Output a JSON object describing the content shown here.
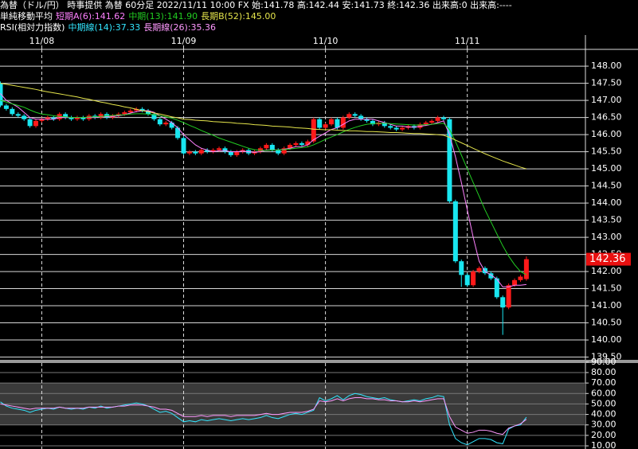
{
  "header": {
    "line1": "為替（ドル/円） 時事提供 為替 60分足 2022/11/11 10:00 FX 始:141.78 高:142.44 安:141.73 終:142.36 出来高:0 出来高:----",
    "ma_title": "単純移動平均",
    "rsi_title": "RSI(相対力指数)"
  },
  "chart_data": [
    {
      "type": "candlestick",
      "categories": [
        null,
        null,
        null,
        null,
        null,
        null,
        null,
        "11/08",
        null,
        null,
        null,
        null,
        null,
        null,
        null,
        null,
        null,
        null,
        null,
        null,
        null,
        null,
        null,
        null,
        null,
        null,
        null,
        null,
        null,
        null,
        null,
        "11/09",
        null,
        null,
        null,
        null,
        null,
        null,
        null,
        null,
        null,
        null,
        null,
        null,
        null,
        null,
        null,
        null,
        null,
        null,
        null,
        null,
        null,
        null,
        null,
        "11/10",
        null,
        null,
        null,
        null,
        null,
        null,
        null,
        null,
        null,
        null,
        null,
        null,
        null,
        null,
        null,
        null,
        null,
        null,
        null,
        null,
        null,
        null,
        null,
        "11/11",
        null,
        null,
        null,
        null,
        null,
        null,
        null,
        null,
        null,
        null
      ],
      "open": [
        147.5,
        146.85,
        146.75,
        146.6,
        146.55,
        146.45,
        146.25,
        146.4,
        146.45,
        146.5,
        146.45,
        146.6,
        146.5,
        146.45,
        146.5,
        146.45,
        146.55,
        146.5,
        146.6,
        146.5,
        146.55,
        146.6,
        146.65,
        146.7,
        146.75,
        146.7,
        146.6,
        146.45,
        146.3,
        146.35,
        146.2,
        145.9,
        145.45,
        145.5,
        145.45,
        145.55,
        145.5,
        145.55,
        145.6,
        145.5,
        145.4,
        145.5,
        145.55,
        145.45,
        145.5,
        145.6,
        145.7,
        145.55,
        145.45,
        145.6,
        145.7,
        145.75,
        145.7,
        145.8,
        146.45,
        146.2,
        146.3,
        146.45,
        146.2,
        146.5,
        146.6,
        146.55,
        146.45,
        146.4,
        146.3,
        146.35,
        146.25,
        146.2,
        146.15,
        146.2,
        146.25,
        146.2,
        146.3,
        146.35,
        146.4,
        146.5,
        146.45,
        144.05,
        142.3,
        141.9,
        141.6,
        142.0,
        142.1,
        141.95,
        141.8,
        141.25,
        140.95,
        141.6,
        141.75,
        141.78
      ],
      "high": [
        147.55,
        146.9,
        146.8,
        146.65,
        146.6,
        146.5,
        146.45,
        146.5,
        146.55,
        146.55,
        146.65,
        146.65,
        146.55,
        146.55,
        146.55,
        146.6,
        146.6,
        146.65,
        146.65,
        146.6,
        146.65,
        146.7,
        146.75,
        146.8,
        146.8,
        146.75,
        146.65,
        146.5,
        146.4,
        146.4,
        146.25,
        145.95,
        145.55,
        145.55,
        145.6,
        145.6,
        145.6,
        145.65,
        145.65,
        145.55,
        145.55,
        145.6,
        145.6,
        145.55,
        145.65,
        145.75,
        145.75,
        145.6,
        145.65,
        145.75,
        145.8,
        145.8,
        145.85,
        146.5,
        146.5,
        146.35,
        146.5,
        146.5,
        146.55,
        146.65,
        146.65,
        146.6,
        146.5,
        146.45,
        146.4,
        146.4,
        146.3,
        146.25,
        146.25,
        146.3,
        146.3,
        146.35,
        146.4,
        146.45,
        146.55,
        146.55,
        146.5,
        144.1,
        142.35,
        141.95,
        142.05,
        142.15,
        142.15,
        142.0,
        141.85,
        141.3,
        141.65,
        141.8,
        141.9,
        142.44
      ],
      "low": [
        146.8,
        146.7,
        146.55,
        146.5,
        146.4,
        146.2,
        146.2,
        146.35,
        146.4,
        146.4,
        146.4,
        146.45,
        146.4,
        146.4,
        146.4,
        146.4,
        146.45,
        146.45,
        146.45,
        146.45,
        146.5,
        146.55,
        146.6,
        146.65,
        146.65,
        146.55,
        146.4,
        146.25,
        146.25,
        146.15,
        145.85,
        145.4,
        145.4,
        145.4,
        145.4,
        145.45,
        145.45,
        145.5,
        145.45,
        145.35,
        145.35,
        145.45,
        145.4,
        145.4,
        145.45,
        145.55,
        145.5,
        145.4,
        145.4,
        145.55,
        145.65,
        145.65,
        145.65,
        145.75,
        146.15,
        146.15,
        146.25,
        146.15,
        146.15,
        146.45,
        146.5,
        146.4,
        146.35,
        146.25,
        146.25,
        146.2,
        146.15,
        146.1,
        146.1,
        146.15,
        146.15,
        146.15,
        146.25,
        146.3,
        146.35,
        146.4,
        144.0,
        142.25,
        141.55,
        141.55,
        141.55,
        141.95,
        141.9,
        141.75,
        141.2,
        140.15,
        140.9,
        141.55,
        141.7,
        141.73
      ],
      "close": [
        146.85,
        146.75,
        146.6,
        146.55,
        146.45,
        146.25,
        146.4,
        146.45,
        146.5,
        146.45,
        146.6,
        146.5,
        146.45,
        146.5,
        146.45,
        146.55,
        146.5,
        146.6,
        146.5,
        146.55,
        146.6,
        146.65,
        146.7,
        146.75,
        146.7,
        146.6,
        146.45,
        146.3,
        146.35,
        146.2,
        145.9,
        145.45,
        145.5,
        145.45,
        145.55,
        145.5,
        145.55,
        145.6,
        145.5,
        145.4,
        145.5,
        145.55,
        145.45,
        145.5,
        145.6,
        145.7,
        145.55,
        145.45,
        145.6,
        145.7,
        145.75,
        145.7,
        145.8,
        146.45,
        146.2,
        146.3,
        146.45,
        146.2,
        146.5,
        146.6,
        146.55,
        146.45,
        146.4,
        146.3,
        146.35,
        146.25,
        146.2,
        146.15,
        146.2,
        146.25,
        146.2,
        146.3,
        146.35,
        146.4,
        146.5,
        146.45,
        144.05,
        142.3,
        141.9,
        141.6,
        142.0,
        142.1,
        141.95,
        141.8,
        141.25,
        140.95,
        141.6,
        141.75,
        141.85,
        142.36
      ],
      "up_color": "#ff1a1a",
      "down_color": "#19e6f0",
      "series": [
        {
          "name": "短期A(6):141.62",
          "color": "#ff80ff",
          "values": [
            147.2,
            147.0,
            146.9,
            146.8,
            146.65,
            146.5,
            146.45,
            146.45,
            146.45,
            146.45,
            146.5,
            146.5,
            146.5,
            146.5,
            146.5,
            146.5,
            146.5,
            146.53,
            146.53,
            146.53,
            146.55,
            146.58,
            146.63,
            146.67,
            146.7,
            146.7,
            146.65,
            146.55,
            146.45,
            146.35,
            146.2,
            146.0,
            145.85,
            145.7,
            145.6,
            145.55,
            145.5,
            145.53,
            145.53,
            145.5,
            145.5,
            145.52,
            145.5,
            145.48,
            145.5,
            145.55,
            145.55,
            145.55,
            145.57,
            145.6,
            145.65,
            145.65,
            145.7,
            145.85,
            145.95,
            146.05,
            146.15,
            146.2,
            146.3,
            146.4,
            146.45,
            146.45,
            146.45,
            146.45,
            146.4,
            146.35,
            146.3,
            146.25,
            146.25,
            146.22,
            146.22,
            146.24,
            146.27,
            146.3,
            146.35,
            146.4,
            146.0,
            145.35,
            144.6,
            143.8,
            143.0,
            142.3,
            142.0,
            141.9,
            141.78,
            141.55,
            141.55,
            141.6,
            141.6,
            141.62
          ]
        },
        {
          "name": "中期(13):141.90",
          "color": "#22cc22",
          "values": [
            147.0,
            146.95,
            146.9,
            146.85,
            146.8,
            146.72,
            146.65,
            146.6,
            146.58,
            146.55,
            146.53,
            146.52,
            146.5,
            146.5,
            146.5,
            146.51,
            146.52,
            146.53,
            146.55,
            146.56,
            146.57,
            146.58,
            146.6,
            146.61,
            146.61,
            146.6,
            146.58,
            146.55,
            146.52,
            146.48,
            146.42,
            146.35,
            146.27,
            146.2,
            146.12,
            146.05,
            145.98,
            145.9,
            145.84,
            145.78,
            145.72,
            145.66,
            145.6,
            145.56,
            145.54,
            145.54,
            145.55,
            145.55,
            145.56,
            145.58,
            145.6,
            145.62,
            145.64,
            145.7,
            145.78,
            145.86,
            145.93,
            146.0,
            146.08,
            146.15,
            146.21,
            146.26,
            146.3,
            146.32,
            146.33,
            146.33,
            146.32,
            146.31,
            146.3,
            146.29,
            146.28,
            146.28,
            146.29,
            146.3,
            146.32,
            146.33,
            146.15,
            145.8,
            145.4,
            145.0,
            144.6,
            144.2,
            143.8,
            143.45,
            143.1,
            142.75,
            142.45,
            142.2,
            142.0,
            141.9
          ]
        },
        {
          "name": "長期B(52):145.00",
          "color": "#e6e64c",
          "values": [
            147.5,
            147.47,
            147.44,
            147.41,
            147.38,
            147.35,
            147.32,
            147.28,
            147.25,
            147.22,
            147.19,
            147.16,
            147.13,
            147.1,
            147.06,
            147.03,
            146.99,
            146.95,
            146.92,
            146.88,
            146.85,
            146.81,
            146.78,
            146.74,
            146.7,
            146.67,
            146.63,
            146.6,
            146.56,
            146.52,
            146.49,
            146.45,
            146.44,
            146.42,
            146.41,
            146.4,
            146.38,
            146.37,
            146.36,
            146.35,
            146.33,
            146.32,
            146.31,
            146.29,
            146.28,
            146.27,
            146.25,
            146.24,
            146.23,
            146.22,
            146.2,
            146.19,
            146.18,
            146.16,
            146.15,
            146.14,
            146.14,
            146.13,
            146.12,
            146.11,
            146.11,
            146.1,
            146.09,
            146.09,
            146.08,
            146.07,
            146.06,
            146.06,
            146.05,
            146.04,
            146.03,
            146.03,
            146.02,
            146.01,
            146.0,
            145.98,
            145.92,
            145.84,
            145.76,
            145.68,
            145.6,
            145.52,
            145.44,
            145.37,
            145.3,
            145.23,
            145.17,
            145.11,
            145.05,
            145.0
          ]
        }
      ],
      "ylim": [
        139.42,
        148.49
      ],
      "yticks": [
        {
          "value": 148,
          "label": "148.00"
        },
        {
          "value": 147.5,
          "label": "147.50"
        },
        {
          "value": 147,
          "label": "147.00"
        },
        {
          "value": 146.5,
          "label": "146.50"
        },
        {
          "value": 146,
          "label": "146.00"
        },
        {
          "value": 145.5,
          "label": "145.50"
        },
        {
          "value": 145,
          "label": "145.00"
        },
        {
          "value": 144.5,
          "label": "144.50"
        },
        {
          "value": 144,
          "label": "144.00"
        },
        {
          "value": 143.5,
          "label": "143.50"
        },
        {
          "value": 143,
          "label": "143.00"
        },
        {
          "value": 142.5,
          "label": "142.50"
        },
        {
          "value": 142,
          "label": "142.00"
        },
        {
          "value": 141.5,
          "label": "141.50"
        },
        {
          "value": 141,
          "label": "141.00"
        },
        {
          "value": 140.5,
          "label": "140.50"
        },
        {
          "value": 140,
          "label": "140.00"
        },
        {
          "value": 139.5,
          "label": "139.50"
        }
      ],
      "last_price": {
        "value": 142.36,
        "label": "142.36"
      }
    },
    {
      "type": "line",
      "series": [
        {
          "name": "中期線(14):37.33",
          "color": "#33e6ff",
          "values": [
            52,
            48,
            46,
            45,
            44,
            42,
            44,
            45,
            46,
            45,
            47,
            46,
            45,
            46,
            45,
            47,
            46,
            48,
            46,
            47,
            48,
            49,
            50,
            51,
            50,
            48,
            45,
            42,
            43,
            41,
            37,
            33,
            34,
            33,
            35,
            34,
            35,
            36,
            35,
            34,
            35,
            36,
            35,
            36,
            37,
            39,
            37,
            36,
            38,
            40,
            41,
            40,
            42,
            44,
            56,
            53,
            55,
            58,
            54,
            58,
            60,
            59,
            57,
            56,
            55,
            56,
            54,
            53,
            52,
            53,
            54,
            53,
            55,
            56,
            58,
            57,
            30,
            17,
            13,
            11,
            14,
            17,
            17,
            16,
            13,
            12,
            26,
            29,
            30,
            37.33
          ]
        },
        {
          "name": "長期線(26):35.36",
          "color": "#ff99ff",
          "values": [
            50,
            49,
            48,
            47,
            46,
            45,
            46,
            46,
            46,
            46,
            47,
            46,
            46,
            46,
            46,
            47,
            47,
            47,
            47,
            47,
            48,
            48,
            49,
            49,
            49,
            48,
            47,
            45,
            45,
            44,
            41,
            38,
            38,
            38,
            39,
            38,
            39,
            39,
            39,
            38,
            39,
            39,
            39,
            39,
            40,
            41,
            40,
            40,
            41,
            42,
            42,
            42,
            43,
            45,
            53,
            52,
            53,
            55,
            53,
            55,
            56,
            56,
            55,
            55,
            54,
            54,
            53,
            53,
            52,
            52,
            53,
            52,
            53,
            54,
            55,
            55,
            38,
            28,
            25,
            22,
            23,
            25,
            25,
            24,
            22,
            21,
            27,
            29,
            31,
            35.36
          ]
        }
      ],
      "band": [
        30,
        70
      ],
      "ylim": [
        7,
        89.1
      ],
      "yticks": [
        {
          "value": 90,
          "label": "90.00"
        },
        {
          "value": 80,
          "label": "80.00"
        },
        {
          "value": 70,
          "label": "70.00"
        },
        {
          "value": 60,
          "label": "60.00"
        },
        {
          "value": 50,
          "label": "50.00"
        },
        {
          "value": 40,
          "label": "40.00"
        },
        {
          "value": 30,
          "label": "30.00"
        },
        {
          "value": 20,
          "label": "20.00"
        },
        {
          "value": 10,
          "label": "10.00"
        }
      ]
    }
  ]
}
